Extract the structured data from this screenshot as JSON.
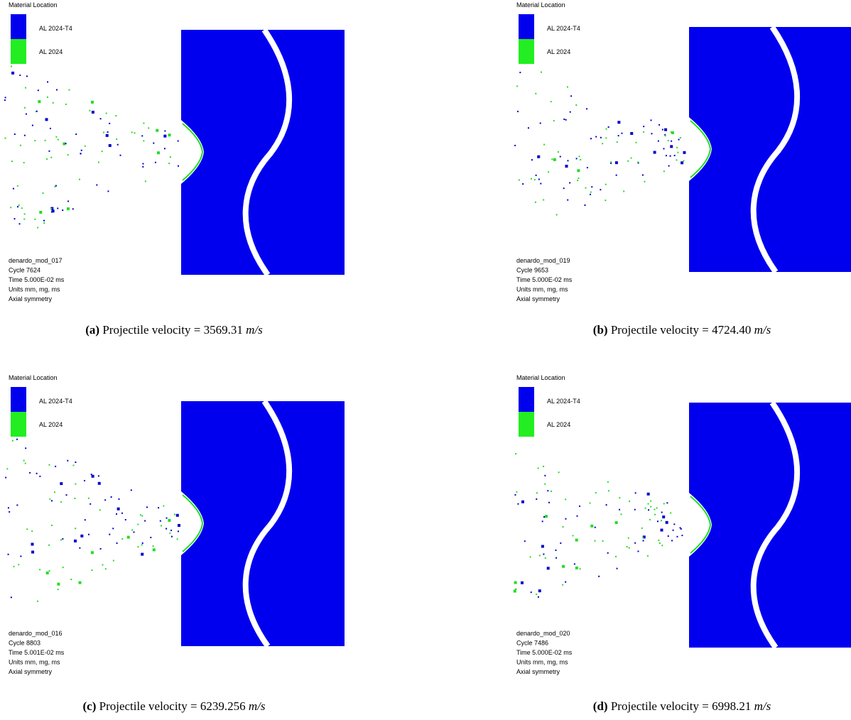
{
  "panels": [
    {
      "legend_title": "Material Location",
      "legend": [
        "AL 2024-T4",
        "AL 2024"
      ],
      "info": [
        "denardo_mod_017",
        "Cycle 7624",
        "Time 5.000E-02 ms",
        "Units mm, mg, ms",
        "Axial symmetry"
      ],
      "caption": {
        "label": "(a)",
        "text": "Projectile velocity = 3569.31",
        "unit": "m/s"
      }
    },
    {
      "legend_title": "Material Location",
      "legend": [
        "AL 2024-T4",
        "AL 2024"
      ],
      "info": [
        "denardo_mod_019",
        "Cycle 9653",
        "Time 5.000E-02 ms",
        "Units mm, mg, ms",
        "Axial symmetry"
      ],
      "caption": {
        "label": "(b)",
        "text": "Projectile velocity = 4724.40",
        "unit": "m/s"
      }
    },
    {
      "legend_title": "Material Location",
      "legend": [
        "AL 2024-T4",
        "AL 2024"
      ],
      "info": [
        "denardo_mod_016",
        "Cycle 8803",
        "Time 5.001E-02 ms",
        "Units mm, mg, ms",
        "Axial symmetry"
      ],
      "caption": {
        "label": "(c)",
        "text": "Projectile velocity = 6239.256",
        "unit": "m/s"
      }
    },
    {
      "legend_title": "Material Location",
      "legend": [
        "AL 2024-T4",
        "AL 2024"
      ],
      "info": [
        "denardo_mod_020",
        "Cycle 7486",
        "Time 5.000E-02 ms",
        "Units mm, mg, ms",
        "Axial symmetry"
      ],
      "caption": {
        "label": "(d)",
        "text": "Projectile velocity = 6998.21",
        "unit": "m/s"
      }
    }
  ]
}
